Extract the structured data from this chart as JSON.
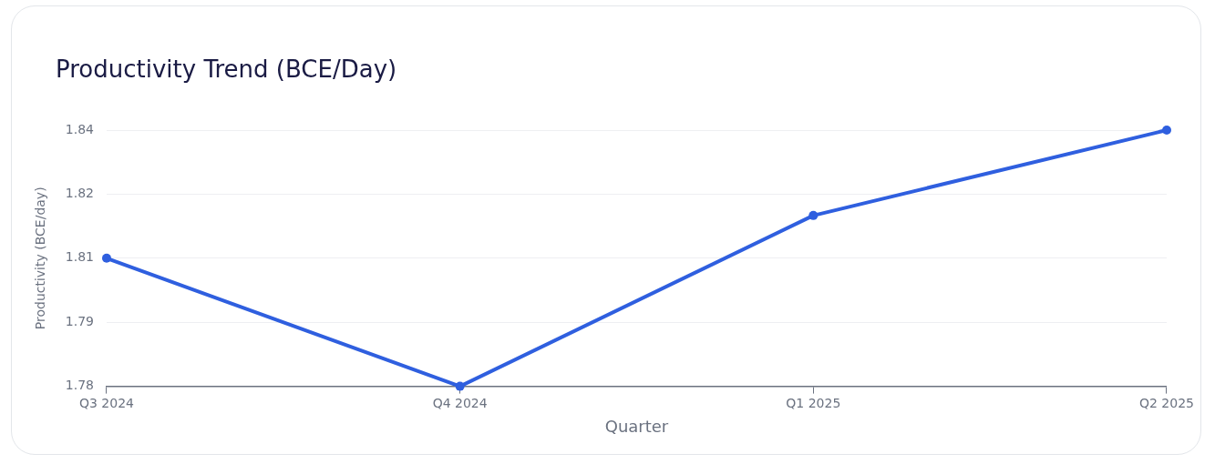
{
  "chart_data": {
    "type": "line",
    "title": "Productivity Trend (BCE/Day)",
    "xlabel": "Quarter",
    "ylabel": "Productivity (BCE/day)",
    "categories": [
      "Q3 2024",
      "Q4 2024",
      "Q1 2025",
      "Q2 2025"
    ],
    "series": [
      {
        "color": "#2f5fdf",
        "values": [
          1.81,
          1.78,
          1.82,
          1.84
        ]
      }
    ],
    "ylim": [
      1.78,
      1.84
    ],
    "yticks": [
      1.78,
      {
        "value": 1.795,
        "label": "1.79"
      },
      1.81,
      {
        "value": 1.825,
        "label": "1.82"
      },
      1.84
    ],
    "grid": "y",
    "legend": false,
    "marker": "circle",
    "line_style": "solid"
  }
}
